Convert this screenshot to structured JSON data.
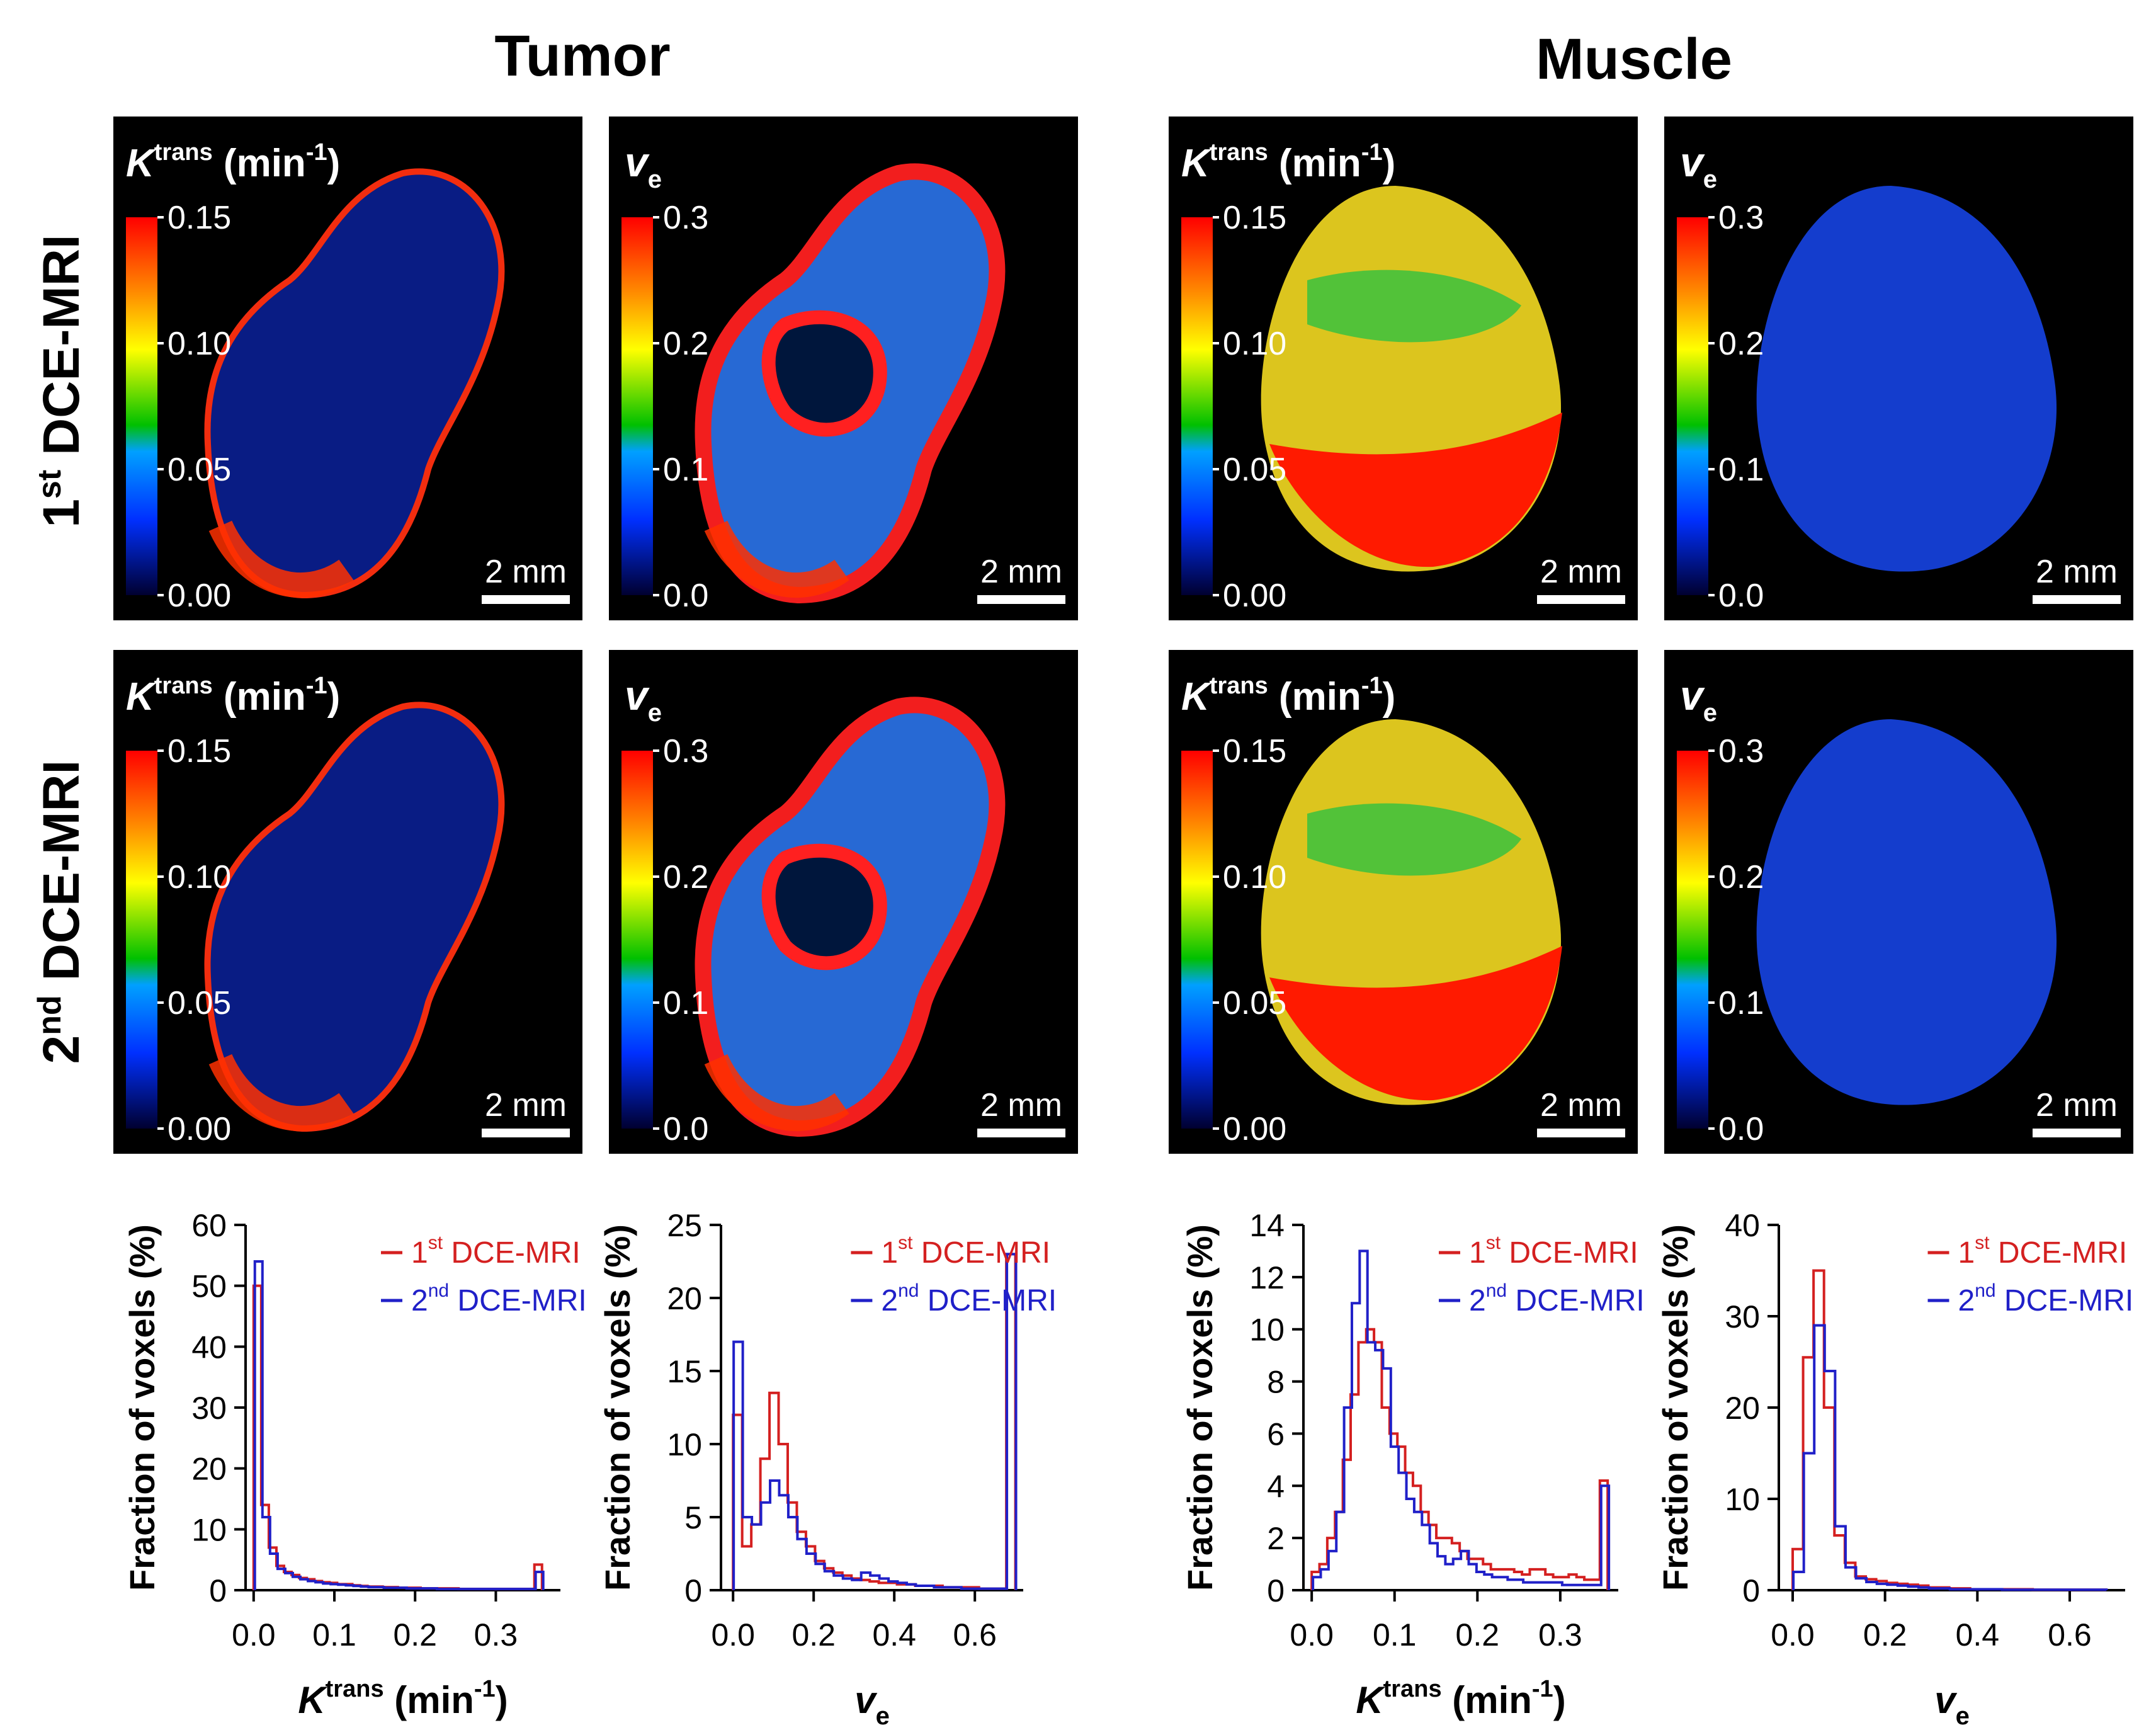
{
  "headers": {
    "tumor": "Tumor",
    "muscle": "Muscle"
  },
  "row_labels": {
    "first": {
      "num": "1",
      "sup": "st",
      "text": " DCE-MRI"
    },
    "second": {
      "num": "2",
      "sup": "nd",
      "text": " DCE-MRI"
    }
  },
  "map_labels": {
    "ktrans": {
      "base": "K",
      "sup": "trans",
      "unit": " (min",
      "unit_sup": "-1",
      "close": ")"
    },
    "ve": {
      "base": "v",
      "sub": "e"
    }
  },
  "colorbars": {
    "ktrans_ticks": [
      "0.15",
      "0.10",
      "0.05",
      "0.00"
    ],
    "ve_ticks": [
      "0.3",
      "0.2",
      "0.1",
      "0.0"
    ],
    "stops": [
      "#ff0000",
      "#ff8c00",
      "#ffff00",
      "#00c000",
      "#00a0ff",
      "#0030ff",
      "#000030"
    ]
  },
  "scale_bar": "2 mm",
  "colors": {
    "first": "#d42020",
    "second": "#2020c8"
  },
  "legend": {
    "first": {
      "num": "1",
      "sup": "st",
      "text": " DCE-MRI"
    },
    "second": {
      "num": "2",
      "sup": "nd",
      "text": " DCE-MRI"
    }
  },
  "chart_data": [
    {
      "type": "histogram",
      "title": "Tumor K^trans",
      "ylabel": "Fraction of voxels (%)",
      "xlabel": "K^trans (min^-1)",
      "ylim": [
        0,
        60
      ],
      "yticks": [
        0,
        10,
        20,
        30,
        40,
        50,
        60
      ],
      "xlim": [
        -0.01,
        0.38
      ],
      "xticks": [
        0.0,
        0.1,
        0.2,
        0.3
      ],
      "xtick_labels": [
        "0.0",
        "0.1",
        "0.2",
        "0.3"
      ],
      "bin_start": 0.0,
      "bin_width": 0.0094,
      "series": [
        {
          "name": "1st DCE-MRI",
          "values": [
            50,
            14,
            7,
            4,
            3,
            2.5,
            2,
            1.8,
            1.5,
            1.3,
            1.2,
            1,
            1,
            0.8,
            0.7,
            0.6,
            0.6,
            0.5,
            0.5,
            0.4,
            0.4,
            0.4,
            0.3,
            0.3,
            0.3,
            0.3,
            0.3,
            0.2,
            0.2,
            0.2,
            0.2,
            0.2,
            0.2,
            0.2,
            0.2,
            0.2,
            0.2,
            4.2
          ]
        },
        {
          "name": "2nd DCE-MRI",
          "values": [
            54,
            12,
            6,
            3.5,
            2.8,
            2.2,
            1.8,
            1.5,
            1.3,
            1.1,
            1,
            0.9,
            0.8,
            0.7,
            0.6,
            0.5,
            0.5,
            0.4,
            0.4,
            0.4,
            0.3,
            0.3,
            0.3,
            0.3,
            0.2,
            0.2,
            0.2,
            0.2,
            0.2,
            0.2,
            0.2,
            0.2,
            0.2,
            0.2,
            0.2,
            0.2,
            0.2,
            3
          ]
        }
      ]
    },
    {
      "type": "histogram",
      "title": "Tumor v_e",
      "ylabel": "Fraction of voxels (%)",
      "xlabel": "v_e",
      "ylim": [
        0,
        25
      ],
      "yticks": [
        0,
        5,
        10,
        15,
        20,
        25
      ],
      "xlim": [
        -0.03,
        0.72
      ],
      "xticks": [
        0.0,
        0.2,
        0.4,
        0.6
      ],
      "xtick_labels": [
        "0.0",
        "0.2",
        "0.4",
        "0.6"
      ],
      "bin_start": 0.0,
      "bin_width": 0.0226,
      "series": [
        {
          "name": "1st DCE-MRI",
          "values": [
            12,
            3,
            4.5,
            9,
            13.5,
            10,
            6,
            4,
            3,
            2,
            1.5,
            1.2,
            1,
            0.8,
            0.7,
            0.6,
            0.5,
            0.5,
            0.4,
            0.4,
            0.3,
            0.3,
            0.3,
            0.2,
            0.2,
            0.2,
            0.2,
            0.1,
            0.1,
            0.1,
            23
          ]
        },
        {
          "name": "2nd DCE-MRI",
          "values": [
            17,
            5,
            4.5,
            6,
            7.5,
            6.5,
            5,
            3.5,
            2.5,
            1.8,
            1.3,
            1,
            0.8,
            0.7,
            1.2,
            1,
            0.8,
            0.6,
            0.5,
            0.4,
            0.3,
            0.3,
            0.2,
            0.2,
            0.2,
            0.1,
            0.1,
            0.1,
            0.1,
            0.1,
            23
          ]
        }
      ]
    },
    {
      "type": "histogram",
      "title": "Muscle K^trans",
      "ylabel": "Fraction of voxels (%)",
      "xlabel": "K^trans (min^-1)",
      "ylim": [
        0,
        14
      ],
      "yticks": [
        0,
        2,
        4,
        6,
        8,
        10,
        12,
        14
      ],
      "xlim": [
        -0.01,
        0.37
      ],
      "xticks": [
        0.0,
        0.1,
        0.2,
        0.3
      ],
      "xtick_labels": [
        "0.0",
        "0.1",
        "0.2",
        "0.3"
      ],
      "bin_start": 0.0,
      "bin_width": 0.0094,
      "series": [
        {
          "name": "1st DCE-MRI",
          "values": [
            0.7,
            1,
            2,
            3,
            5,
            7.5,
            9.5,
            10,
            9.5,
            7,
            6,
            5.5,
            4.5,
            4,
            3,
            2.5,
            2,
            2,
            1.8,
            1.5,
            1.2,
            1.2,
            1,
            0.8,
            0.8,
            0.8,
            0.7,
            0.6,
            0.8,
            0.8,
            0.6,
            0.5,
            0.5,
            0.6,
            0.5,
            0.4,
            0.4,
            4.2
          ]
        },
        {
          "name": "2nd DCE-MRI",
          "values": [
            0.5,
            0.8,
            1.5,
            3,
            7,
            11,
            13,
            9.5,
            9.2,
            8.5,
            5.5,
            4.5,
            3.5,
            3,
            2.5,
            1.8,
            1.3,
            1,
            1.2,
            1.5,
            1,
            0.7,
            0.6,
            0.5,
            0.5,
            0.4,
            0.4,
            0.3,
            0.3,
            0.3,
            0.3,
            0.3,
            0.2,
            0.2,
            0.2,
            0.2,
            0.2,
            4
          ]
        }
      ]
    },
    {
      "type": "histogram",
      "title": "Muscle v_e",
      "ylabel": "Fraction of voxels (%)",
      "xlabel": "v_e",
      "ylim": [
        0,
        40
      ],
      "yticks": [
        0,
        10,
        20,
        30,
        40
      ],
      "xlim": [
        -0.03,
        0.72
      ],
      "xticks": [
        0.0,
        0.2,
        0.4,
        0.6
      ],
      "xtick_labels": [
        "0.0",
        "0.2",
        "0.4",
        "0.6"
      ],
      "bin_start": 0.0,
      "bin_width": 0.0226,
      "series": [
        {
          "name": "1st DCE-MRI",
          "values": [
            4.5,
            25.5,
            35,
            20,
            6,
            3,
            1.5,
            1.2,
            1,
            0.8,
            0.7,
            0.6,
            0.5,
            0.3,
            0.3,
            0.2,
            0.2,
            0.1,
            0.1,
            0.1,
            0.1,
            0.1,
            0.1,
            0.05,
            0.05,
            0.05,
            0.05,
            0.05,
            0.05,
            0.05
          ]
        },
        {
          "name": "2nd DCE-MRI",
          "values": [
            2,
            15,
            29,
            24,
            7,
            2.5,
            1.3,
            0.9,
            0.7,
            0.6,
            0.5,
            0.4,
            0.3,
            0.2,
            0.2,
            0.1,
            0.1,
            0.1,
            0.1,
            0.1,
            0.05,
            0.05,
            0.05,
            0.05,
            0.05,
            0.05,
            0.05,
            0.05,
            0.05,
            0.05
          ]
        }
      ]
    }
  ]
}
